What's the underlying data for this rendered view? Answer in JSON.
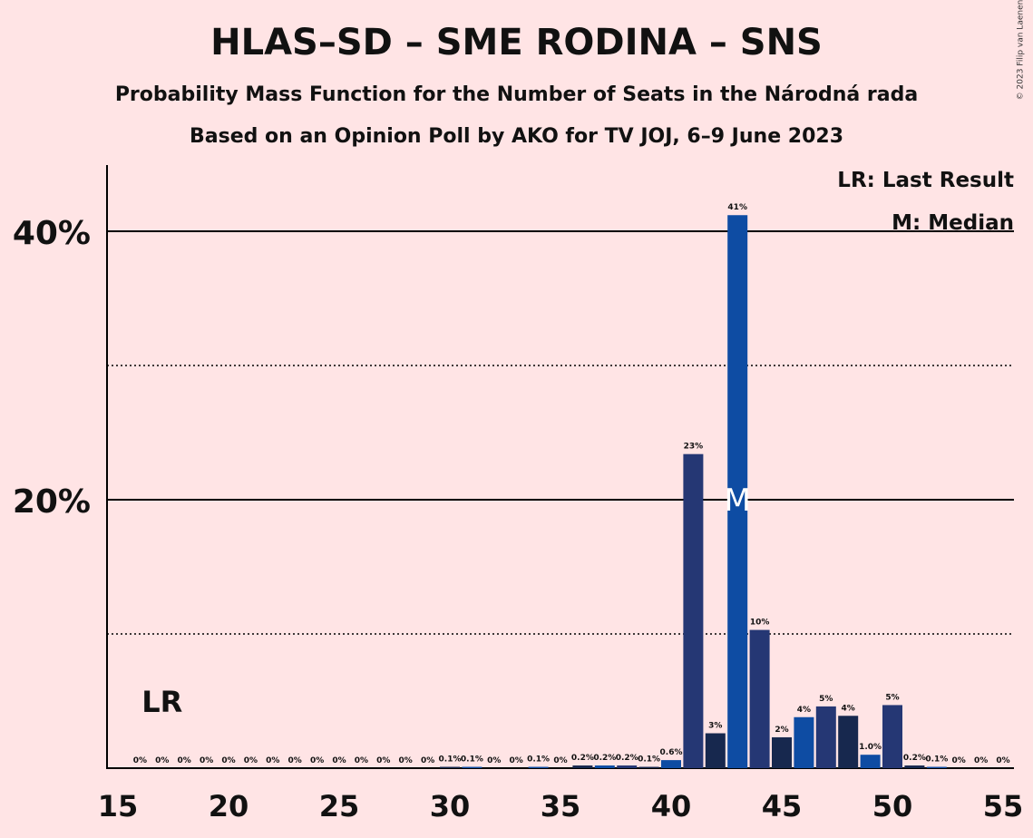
{
  "chart_data": {
    "type": "bar",
    "title": "HLAS–SD – SME RODINA – SNS",
    "subtitle": "Probability Mass Function for the Number of Seats in the Národná rada",
    "subtitle2": "Based on an Opinion Poll by AKO for TV JOJ, 6–9 June 2023",
    "xlabel": "",
    "ylabel": "",
    "xlim": [
      15,
      55
    ],
    "ylim": [
      0,
      45
    ],
    "x_ticks": [
      "15",
      "20",
      "25",
      "30",
      "35",
      "40",
      "45",
      "50",
      "55"
    ],
    "y_ticks": [
      "20%",
      "40%"
    ],
    "grid_major": [
      20,
      40
    ],
    "grid_minor": [
      10,
      30
    ],
    "last_result": 17,
    "last_result_label": "LR",
    "median": 43,
    "median_label": "M",
    "legend": [
      "LR: Last Result",
      "M: Median"
    ],
    "copyright": "© 2023 Filip van Laenen",
    "colors": {
      "shade_a": "#253774",
      "shade_b": "#0E4CA3",
      "shade_c": "#17284E",
      "background": "#FFE4E5"
    },
    "bars": [
      {
        "x": 16,
        "value": 0,
        "label": "0%"
      },
      {
        "x": 17,
        "value": 0,
        "label": "0%"
      },
      {
        "x": 18,
        "value": 0,
        "label": "0%"
      },
      {
        "x": 19,
        "value": 0,
        "label": "0%"
      },
      {
        "x": 20,
        "value": 0,
        "label": "0%"
      },
      {
        "x": 21,
        "value": 0,
        "label": "0%"
      },
      {
        "x": 22,
        "value": 0,
        "label": "0%"
      },
      {
        "x": 23,
        "value": 0,
        "label": "0%"
      },
      {
        "x": 24,
        "value": 0,
        "label": "0%"
      },
      {
        "x": 25,
        "value": 0,
        "label": "0%"
      },
      {
        "x": 26,
        "value": 0,
        "label": "0%"
      },
      {
        "x": 27,
        "value": 0,
        "label": "0%"
      },
      {
        "x": 28,
        "value": 0,
        "label": "0%"
      },
      {
        "x": 29,
        "value": 0,
        "label": "0%"
      },
      {
        "x": 30,
        "value": 0.1,
        "label": "0.1%"
      },
      {
        "x": 31,
        "value": 0.1,
        "label": "0.1%"
      },
      {
        "x": 32,
        "value": 0,
        "label": "0%"
      },
      {
        "x": 33,
        "value": 0,
        "label": "0%"
      },
      {
        "x": 34,
        "value": 0.1,
        "label": "0.1%"
      },
      {
        "x": 35,
        "value": 0,
        "label": "0%"
      },
      {
        "x": 36,
        "value": 0.2,
        "label": "0.2%"
      },
      {
        "x": 37,
        "value": 0.2,
        "label": "0.2%"
      },
      {
        "x": 38,
        "value": 0.2,
        "label": "0.2%"
      },
      {
        "x": 39,
        "value": 0.1,
        "label": "0.1%"
      },
      {
        "x": 40,
        "value": 0.6,
        "label": "0.6%"
      },
      {
        "x": 41,
        "value": 23.4,
        "label": "23%"
      },
      {
        "x": 42,
        "value": 2.6,
        "label": "3%"
      },
      {
        "x": 43,
        "value": 41.2,
        "label": "41%"
      },
      {
        "x": 44,
        "value": 10.3,
        "label": "10%"
      },
      {
        "x": 45,
        "value": 2.3,
        "label": "2%"
      },
      {
        "x": 46,
        "value": 3.8,
        "label": "4%"
      },
      {
        "x": 47,
        "value": 4.6,
        "label": "5%"
      },
      {
        "x": 48,
        "value": 3.9,
        "label": "4%"
      },
      {
        "x": 49,
        "value": 1.0,
        "label": "1.0%"
      },
      {
        "x": 50,
        "value": 4.7,
        "label": "5%"
      },
      {
        "x": 51,
        "value": 0.2,
        "label": "0.2%"
      },
      {
        "x": 52,
        "value": 0.1,
        "label": "0.1%"
      },
      {
        "x": 53,
        "value": 0,
        "label": "0%"
      },
      {
        "x": 54,
        "value": 0,
        "label": "0%"
      },
      {
        "x": 55,
        "value": 0,
        "label": "0%"
      }
    ]
  }
}
